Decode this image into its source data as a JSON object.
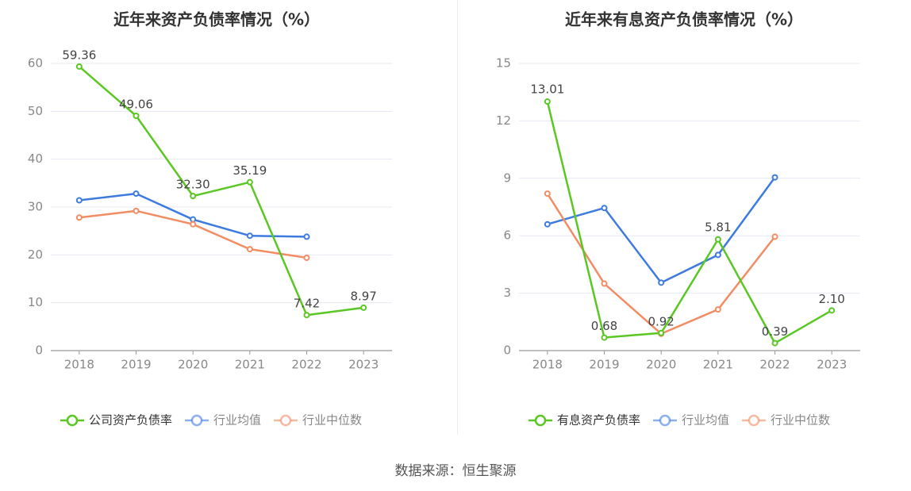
{
  "source_label": "数据来源：恒生聚源",
  "colors": {
    "company": "#5ac724",
    "industry_avg": "#3d7be0",
    "industry_median": "#f28c63",
    "axis": "#888888",
    "grid": "#e6e9f2",
    "label": "#444444",
    "title": "#333333"
  },
  "chart_data": [
    {
      "type": "line",
      "title": "近年来资产负债率情况（%）",
      "categories": [
        "2018",
        "2019",
        "2020",
        "2021",
        "2022",
        "2023"
      ],
      "ylim": [
        0,
        60
      ],
      "yticks": [
        "0",
        "10",
        "20",
        "30",
        "40",
        "50",
        "60"
      ],
      "grid": true,
      "legend_position": "bottom",
      "series": [
        {
          "name": "公司资产负债率",
          "color": "#5ac724",
          "values": [
            59.36,
            49.06,
            32.3,
            35.19,
            7.42,
            8.97
          ],
          "labels": [
            "59.36",
            "49.06",
            "32.30",
            "35.19",
            "7.42",
            "8.97"
          ]
        },
        {
          "name": "行业均值",
          "color": "#3d7be0",
          "values": [
            31.4,
            32.8,
            27.4,
            24.0,
            23.8,
            null
          ]
        },
        {
          "name": "行业中位数",
          "color": "#f28c63",
          "values": [
            27.8,
            29.2,
            26.4,
            21.2,
            19.4,
            null
          ]
        }
      ]
    },
    {
      "type": "line",
      "title": "近年来有息资产负债率情况（%）",
      "categories": [
        "2018",
        "2019",
        "2020",
        "2021",
        "2022",
        "2023"
      ],
      "ylim": [
        0,
        15
      ],
      "yticks": [
        "0",
        "3",
        "6",
        "9",
        "12",
        "15"
      ],
      "grid": true,
      "legend_position": "bottom",
      "series": [
        {
          "name": "有息资产负债率",
          "color": "#5ac724",
          "values": [
            13.01,
            0.68,
            0.92,
            5.81,
            0.39,
            2.1
          ],
          "labels": [
            "13.01",
            "0.68",
            "0.92",
            "5.81",
            "0.39",
            "2.10"
          ]
        },
        {
          "name": "行业均值",
          "color": "#3d7be0",
          "values": [
            6.6,
            7.45,
            3.55,
            5.0,
            9.05,
            null
          ]
        },
        {
          "name": "行业中位数",
          "color": "#f28c63",
          "values": [
            8.2,
            3.5,
            0.88,
            2.15,
            5.95,
            null
          ]
        }
      ]
    }
  ]
}
